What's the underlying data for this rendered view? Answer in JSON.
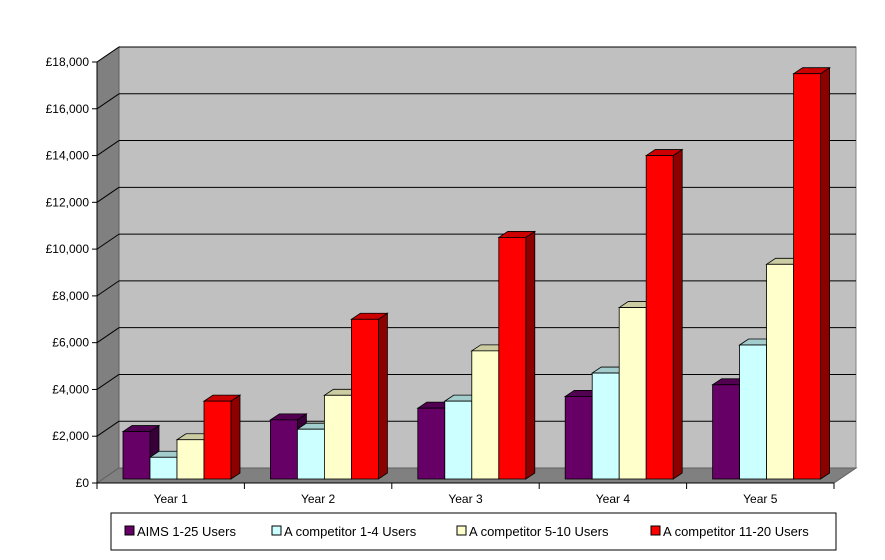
{
  "chart_data": {
    "type": "bar",
    "title": "",
    "xlabel": "",
    "ylabel": "",
    "ylim": [
      0,
      18000
    ],
    "y_ticks": [
      0,
      2000,
      4000,
      6000,
      8000,
      10000,
      12000,
      14000,
      16000,
      18000
    ],
    "y_tick_labels": [
      "£0",
      "£2,000",
      "£4,000",
      "£6,000",
      "£8,000",
      "£10,000",
      "£12,000",
      "£14,000",
      "£16,000",
      "£18,000"
    ],
    "categories": [
      "Year 1",
      "Year 2",
      "Year 3",
      "Year 4",
      "Year 5"
    ],
    "series": [
      {
        "name": "AIMS 1-25 Users",
        "color": "#660066",
        "values": [
          2200,
          2700,
          3200,
          3700,
          4200
        ]
      },
      {
        "name": "A competitor 1-4 Users",
        "color": "#ccffff",
        "values": [
          1100,
          2300,
          3500,
          4700,
          5900
        ]
      },
      {
        "name": "A competitor 5-10 Users",
        "color": "#ffffcc",
        "values": [
          1850,
          3750,
          5650,
          7500,
          9350
        ]
      },
      {
        "name": "A competitor 11-20 Users",
        "color": "#ff0000",
        "values": [
          3500,
          7000,
          10500,
          14000,
          17500
        ]
      }
    ],
    "grid": true,
    "legend_position": "bottom",
    "style": "3d-clustered-column",
    "wall_color": "#c0c0c0",
    "floor_color": "#808080"
  }
}
